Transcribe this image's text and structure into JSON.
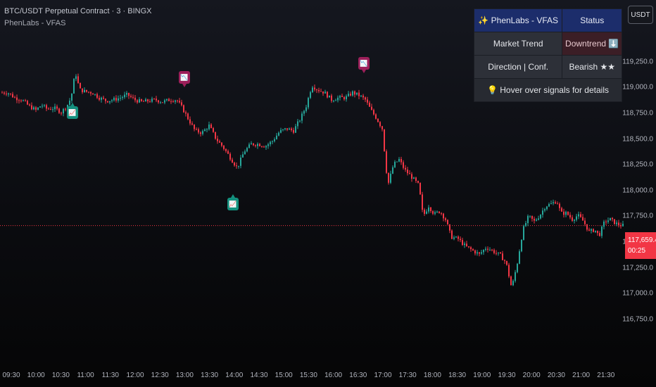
{
  "header": {
    "symbol": "BTC/USDT Perpetual Contract · 3 · BINGX",
    "indicator": "PhenLabs - VFAS"
  },
  "currency_button": "USDT",
  "price_tag": {
    "price": "117,659.4",
    "countdown": "00:25"
  },
  "y_axis": {
    "ticks": [
      "119,250.0",
      "119,000.0",
      "118,750.0",
      "118,500.0",
      "118,250.0",
      "118,000.0",
      "117,750.0",
      "117,500.0",
      "117,250.0",
      "117,000.0",
      "116,750.0"
    ]
  },
  "x_axis": {
    "ticks": [
      "09:30",
      "10:00",
      "10:30",
      "11:00",
      "11:30",
      "12:00",
      "12:30",
      "13:00",
      "13:30",
      "14:00",
      "14:30",
      "15:00",
      "15:30",
      "16:00",
      "16:30",
      "17:00",
      "17:30",
      "18:00",
      "18:30",
      "19:00",
      "19:30",
      "20:00",
      "20:30",
      "21:00",
      "21:30"
    ]
  },
  "status_table": {
    "title": "✨ PhenLabs - VFAS",
    "status_header": "Status",
    "rows": [
      {
        "label": "Market Trend",
        "value": "Downtrend ⬇️"
      },
      {
        "label": "Direction | Conf.",
        "value": "Bearish ★★"
      }
    ],
    "footer": "💡 Hover over signals for details"
  },
  "colors": {
    "up": "#26a69a",
    "down": "#f23645",
    "sell_signal": "#9c1f5a",
    "buy_signal": "#14907e",
    "table_header": "#1c2d6b"
  },
  "signals": [
    {
      "type": "sell",
      "icon": "📉"
    },
    {
      "type": "buy",
      "icon": "📈"
    },
    {
      "type": "buy",
      "icon": "📈"
    },
    {
      "type": "sell",
      "icon": "📉"
    }
  ],
  "chart_data": {
    "type": "candlestick",
    "current_price": 117659.4,
    "ylim": [
      116700,
      119400
    ],
    "close_path": [
      [
        0,
        118950
      ],
      [
        10,
        118950
      ],
      [
        20,
        118900
      ],
      [
        30,
        118880
      ],
      [
        40,
        118820
      ],
      [
        50,
        118780
      ],
      [
        58,
        118830
      ],
      [
        66,
        118790
      ],
      [
        76,
        118800
      ],
      [
        86,
        118760
      ],
      [
        94,
        118820
      ],
      [
        100,
        118900
      ],
      [
        106,
        119150
      ],
      [
        112,
        118980
      ],
      [
        120,
        118960
      ],
      [
        130,
        118950
      ],
      [
        140,
        118900
      ],
      [
        150,
        118870
      ],
      [
        160,
        118880
      ],
      [
        170,
        118900
      ],
      [
        180,
        118930
      ],
      [
        190,
        118880
      ],
      [
        200,
        118860
      ],
      [
        210,
        118870
      ],
      [
        220,
        118880
      ],
      [
        230,
        118860
      ],
      [
        240,
        118880
      ],
      [
        250,
        118880
      ],
      [
        258,
        118800
      ],
      [
        266,
        118700
      ],
      [
        276,
        118580
      ],
      [
        286,
        118560
      ],
      [
        296,
        118630
      ],
      [
        306,
        118500
      ],
      [
        316,
        118420
      ],
      [
        326,
        118320
      ],
      [
        336,
        118220
      ],
      [
        346,
        118380
      ],
      [
        356,
        118450
      ],
      [
        366,
        118450
      ],
      [
        376,
        118430
      ],
      [
        386,
        118480
      ],
      [
        396,
        118570
      ],
      [
        406,
        118600
      ],
      [
        416,
        118580
      ],
      [
        426,
        118700
      ],
      [
        434,
        118820
      ],
      [
        442,
        119020
      ],
      [
        450,
        118980
      ],
      [
        460,
        118950
      ],
      [
        470,
        118880
      ],
      [
        480,
        118900
      ],
      [
        490,
        118900
      ],
      [
        500,
        118950
      ],
      [
        510,
        118920
      ],
      [
        518,
        118880
      ],
      [
        526,
        118780
      ],
      [
        534,
        118700
      ],
      [
        542,
        118600
      ],
      [
        550,
        118050
      ],
      [
        558,
        118250
      ],
      [
        566,
        118300
      ],
      [
        574,
        118200
      ],
      [
        584,
        118130
      ],
      [
        594,
        118050
      ],
      [
        600,
        117750
      ],
      [
        608,
        117850
      ],
      [
        616,
        117770
      ],
      [
        624,
        117800
      ],
      [
        632,
        117720
      ],
      [
        640,
        117550
      ],
      [
        650,
        117530
      ],
      [
        660,
        117460
      ],
      [
        670,
        117420
      ],
      [
        680,
        117380
      ],
      [
        690,
        117450
      ],
      [
        700,
        117410
      ],
      [
        710,
        117370
      ],
      [
        718,
        117300
      ],
      [
        726,
        117050
      ],
      [
        734,
        117300
      ],
      [
        742,
        117620
      ],
      [
        750,
        117750
      ],
      [
        758,
        117700
      ],
      [
        766,
        117760
      ],
      [
        774,
        117850
      ],
      [
        782,
        117870
      ],
      [
        790,
        117900
      ],
      [
        796,
        117780
      ],
      [
        804,
        117780
      ],
      [
        812,
        117720
      ],
      [
        820,
        117760
      ],
      [
        828,
        117700
      ],
      [
        836,
        117600
      ],
      [
        844,
        117620
      ],
      [
        850,
        117560
      ],
      [
        858,
        117700
      ],
      [
        866,
        117720
      ],
      [
        874,
        117680
      ],
      [
        882,
        117660
      ]
    ]
  }
}
